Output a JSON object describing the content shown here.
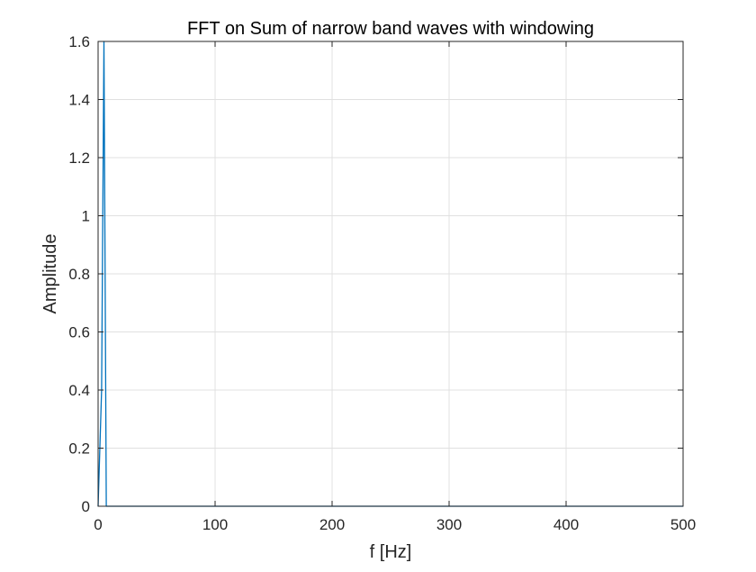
{
  "colors": {
    "line": "#0072bd",
    "grid": "#e0e0e0",
    "axes": "#262626",
    "background": "#ffffff"
  },
  "chart_data": {
    "type": "line",
    "title": "FFT on Sum of narrow band waves with windowing",
    "xlabel": "f [Hz]",
    "ylabel": "Amplitude",
    "xlim": [
      0,
      500
    ],
    "ylim": [
      0,
      1.6
    ],
    "grid": true,
    "xticks": [
      0,
      100,
      200,
      300,
      400,
      500
    ],
    "xtick_labels": [
      "0",
      "100",
      "200",
      "300",
      "400",
      "500"
    ],
    "yticks": [
      0,
      0.2,
      0.4,
      0.6,
      0.8,
      1,
      1.2,
      1.4,
      1.6
    ],
    "ytick_labels": [
      "0",
      "0.2",
      "0.4",
      "0.6",
      "0.8",
      "1",
      "1.2",
      "1.4",
      "1.6"
    ],
    "series": [
      {
        "x": [
          0,
          3,
          5,
          7,
          9,
          500
        ],
        "y": [
          0,
          0.4,
          1.6,
          0.0,
          0,
          0
        ]
      }
    ]
  }
}
